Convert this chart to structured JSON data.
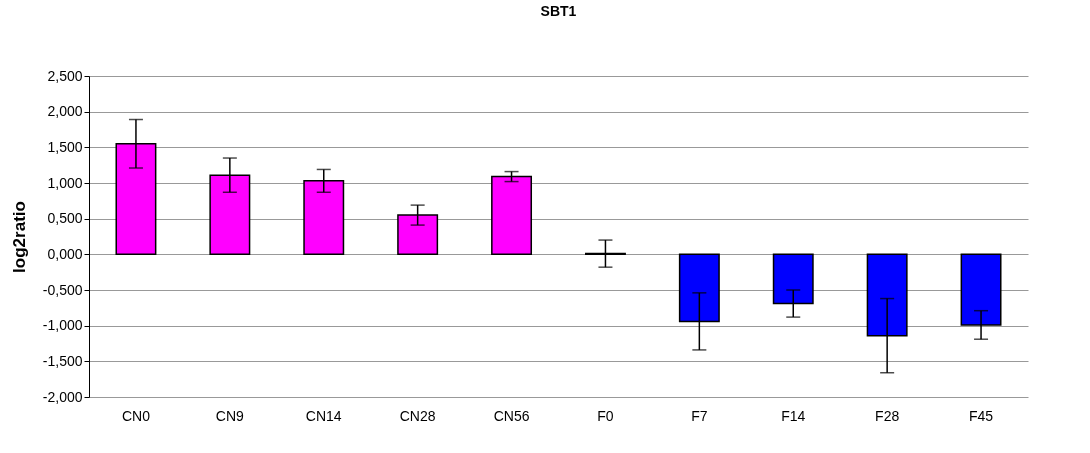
{
  "chart_data": {
    "type": "bar",
    "title": "SBT1",
    "ylabel": "log2ratio",
    "categories": [
      "CN0",
      "CN9",
      "CN14",
      "CN28",
      "CN56",
      "F0",
      "F7",
      "F14",
      "F28",
      "F45"
    ],
    "values": [
      1.55,
      1.11,
      1.03,
      0.55,
      1.09,
      0.01,
      -0.94,
      -0.69,
      -1.14,
      -0.99
    ],
    "errors": [
      0.34,
      0.24,
      0.16,
      0.14,
      0.07,
      0.19,
      0.4,
      0.19,
      0.52,
      0.2
    ],
    "colors": [
      "#ff00ff",
      "#ff00ff",
      "#ff00ff",
      "#ff00ff",
      "#ff00ff",
      "#0000ff",
      "#0000ff",
      "#0000ff",
      "#0000ff",
      "#0000ff"
    ],
    "ylim": [
      -2,
      2.5
    ],
    "yticks": [
      {
        "value": -2,
        "label": "-2,000"
      },
      {
        "value": -1.5,
        "label": "-1,500"
      },
      {
        "value": -1,
        "label": "-1,000"
      },
      {
        "value": -0.5,
        "label": "-0,500"
      },
      {
        "value": 0,
        "label": "0,000"
      },
      {
        "value": 0.5,
        "label": "0,500"
      },
      {
        "value": 1,
        "label": "1,000"
      },
      {
        "value": 1.5,
        "label": "1,500"
      },
      {
        "value": 2,
        "label": "2,000"
      },
      {
        "value": 2.5,
        "label": "2,500"
      }
    ],
    "grid": "y"
  }
}
